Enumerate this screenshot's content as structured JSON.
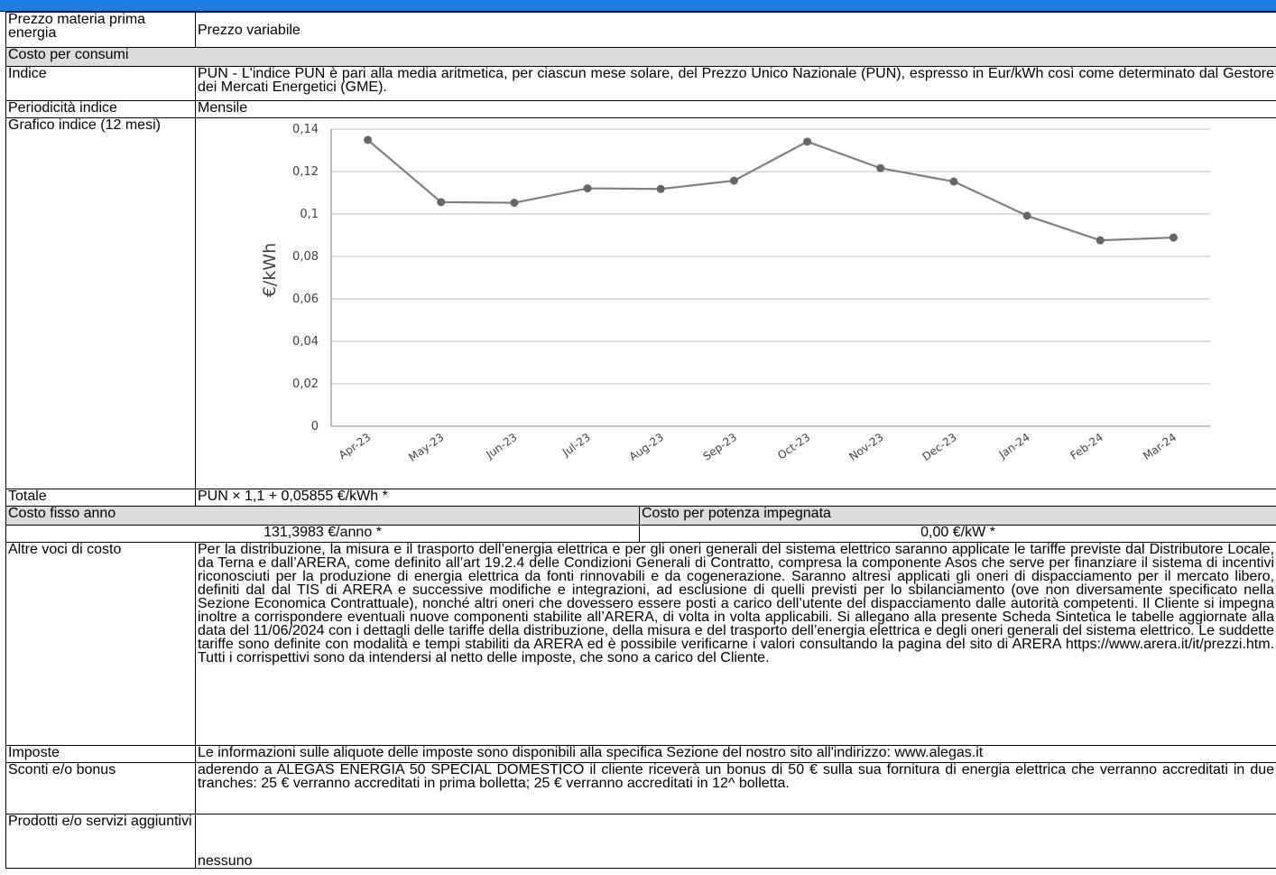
{
  "rows": {
    "prezzo_materia": {
      "label": "Prezzo materia prima energia",
      "value": "Prezzo variabile"
    },
    "costo_consumi": {
      "label": "Costo per consumi"
    },
    "indice": {
      "label": "Indice",
      "value": "PUN - L'indice PUN è pari alla media aritmetica, per ciascun mese solare, del Prezzo Unico Nazionale (PUN), espresso in Eur/kWh così come determinato dal Gestore dei Mercati Energetici (GME)."
    },
    "periodicita": {
      "label": "Periodicità indice",
      "value": "Mensile"
    },
    "grafico": {
      "label": "Grafico indice (12 mesi)"
    },
    "totale": {
      "label": "Totale",
      "value": "PUN × 1,1 + 0,05855 €/kWh *"
    },
    "costo_fisso": {
      "label": "Costo fisso anno",
      "value": "131,3983 €/anno *"
    },
    "costo_potenza": {
      "label": "Costo per potenza impegnata",
      "value": "0,00 €/kW *"
    },
    "altre_voci": {
      "label": "Altre voci di costo",
      "value": "Per la distribuzione, la misura e il trasporto dell’energia elettrica e per gli oneri generali del sistema elettrico saranno applicate le tariffe previste dal Distributore Locale, da Terna e dall’ARERA, come definito all’art 19.2.4 delle Condizioni Generali di Contratto, compresa la componente Asos che serve per finanziare il sistema di incentivi riconosciuti per la produzione di energia elettrica da fonti rinnovabili e da cogenerazione. Saranno altresì applicati gli oneri di dispacciamento per il mercato libero, definiti dal dal TIS di ARERA e successive modifiche e integrazioni, ad esclusione di quelli previsti per lo sbilanciamento (ove non diversamente specificato nella Sezione Economica Contrattuale), nonché altri oneri che dovessero essere posti a carico dell’utente del dispacciamento dalle autorità competenti. Il Cliente si impegna inoltre a corrispondere eventuali nuove componenti stabilite all’ARERA, di volta in volta applicabili. Si allegano alla presente Scheda Sintetica le tabelle aggiornate alla data del 11/06/2024 con i dettagli delle tariffe della distribuzione, della misura e del trasporto dell’energia elettrica e degli oneri generali del sistema elettrico. Le suddette tariffe sono definite con modalità e tempi stabiliti da ARERA ed è possibile verificarne i valori consultando la pagina del sito di ARERA https://www.arera.it/it/prezzi.htm. Tutti i corrispettivi sono da intendersi al netto delle imposte, che sono a carico del Cliente."
    },
    "imposte": {
      "label": "Imposte",
      "value": "Le informazioni sulle aliquote delle imposte sono disponibili alla specifica Sezione del nostro sito all'indirizzo: www.alegas.it"
    },
    "sconti": {
      "label": "Sconti e/o bonus",
      "value": "aderendo a ALEGAS ENERGIA 50 SPECIAL DOMESTICO il cliente riceverà un bonus di 50 € sulla sua fornitura di energia elettrica che verranno accreditati in due tranches: 25 € verranno accreditati in prima bolletta; 25 € verranno accreditati in 12^ bolletta."
    },
    "prodotti": {
      "label": "Prodotti e/o servizi aggiuntivi",
      "value": "nessuno"
    }
  },
  "colors": {
    "header_bar": "#1f7fe0",
    "section_gray": "#dcdcdc",
    "series_line": "#7f7f7f",
    "grid": "#bfbfbf"
  },
  "chart_data": {
    "type": "line",
    "title": "",
    "xlabel": "",
    "ylabel": "€/kWh",
    "categories": [
      "Apr-23",
      "May-23",
      "Jun-23",
      "Jul-23",
      "Aug-23",
      "Sep-23",
      "Oct-23",
      "Nov-23",
      "Dec-23",
      "Jan-24",
      "Feb-24",
      "Mar-24"
    ],
    "values": [
      0.1349,
      0.1056,
      0.1053,
      0.1121,
      0.1118,
      0.1157,
      0.1341,
      0.1216,
      0.1153,
      0.0992,
      0.0876,
      0.0889
    ],
    "ylim": [
      0,
      0.14
    ],
    "yticks": [
      "0",
      "0,02",
      "0,04",
      "0,06",
      "0,08",
      "0,1",
      "0,12",
      "0,14"
    ],
    "grid": true,
    "legend": "none"
  }
}
